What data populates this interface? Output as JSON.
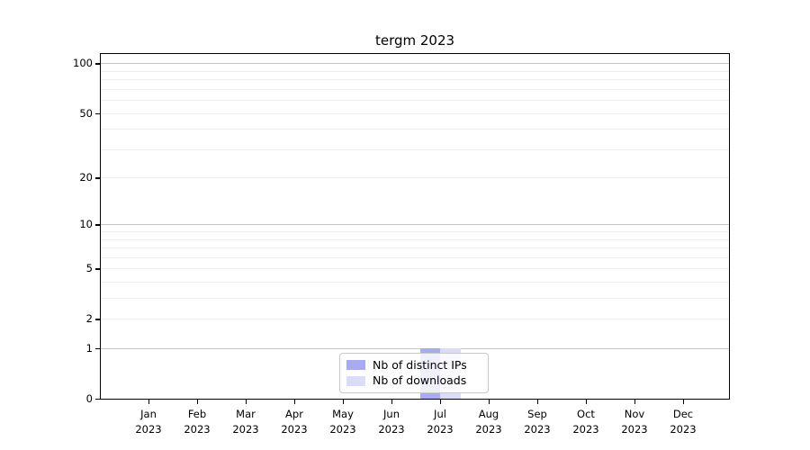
{
  "chart_data": {
    "type": "bar",
    "title": "tergm 2023",
    "categories": [
      "Jan",
      "Feb",
      "Mar",
      "Apr",
      "May",
      "Jun",
      "Jul",
      "Aug",
      "Sep",
      "Oct",
      "Nov",
      "Dec"
    ],
    "x_tick_second_line": "2023",
    "series": [
      {
        "name": "Nb of distinct IPs",
        "color": "#a9abf0",
        "values": [
          0,
          0,
          0,
          0,
          0,
          0,
          1,
          0,
          0,
          0,
          0,
          0
        ]
      },
      {
        "name": "Nb of downloads",
        "color": "#dadcf8",
        "values": [
          0,
          0,
          0,
          0,
          0,
          0,
          1,
          0,
          0,
          0,
          0,
          0
        ]
      }
    ],
    "xlabel": "",
    "ylabel": "",
    "y_scale": "log1p",
    "ylim": [
      0,
      114
    ],
    "y_ticks": [
      0,
      1,
      2,
      5,
      10,
      20,
      50,
      100
    ],
    "grid": {
      "major_values": [
        1,
        10,
        100
      ],
      "minor_values": [
        2,
        3,
        4,
        5,
        6,
        7,
        8,
        9,
        20,
        30,
        40,
        50,
        60,
        70,
        80,
        90
      ],
      "major_color": "#c4c4c4",
      "minor_color": "#ededed"
    },
    "legend": {
      "position": "lower center"
    },
    "colors": {
      "background": "#ffffff",
      "spine": "#000000",
      "text": "#000000",
      "legend_border": "#c9c9c9"
    }
  }
}
